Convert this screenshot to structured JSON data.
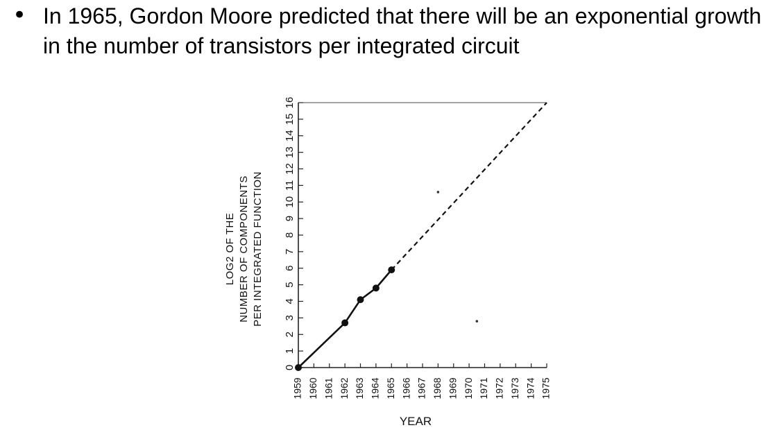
{
  "slide": {
    "bullet_symbol": "•",
    "text": "In 1965, Gordon Moore predicted that there will be an exponential growth in the number of transistors per integrated circuit"
  },
  "chart_data": {
    "type": "line",
    "xlabel": "YEAR",
    "ylabel_lines": [
      "LOG2 OF THE",
      "NUMBER OF COMPONENTS",
      "PER INTEGRATED FUNCTION"
    ],
    "x_ticks": [
      1959,
      1960,
      1961,
      1962,
      1963,
      1964,
      1965,
      1966,
      1967,
      1968,
      1969,
      1970,
      1971,
      1972,
      1973,
      1974,
      1975
    ],
    "y_ticks": [
      0,
      1,
      2,
      3,
      4,
      5,
      6,
      7,
      8,
      9,
      10,
      11,
      12,
      13,
      14,
      15,
      16
    ],
    "xlim": [
      1959,
      1975
    ],
    "ylim": [
      0,
      16
    ],
    "grid": false,
    "series": [
      {
        "style": "solid",
        "markers": true,
        "points": [
          [
            1959,
            0
          ],
          [
            1962,
            2.7
          ],
          [
            1963,
            4.1
          ],
          [
            1964,
            4.8
          ],
          [
            1965,
            5.9
          ]
        ]
      },
      {
        "style": "dashed",
        "markers": false,
        "points": [
          [
            1965,
            5.9
          ],
          [
            1975,
            16
          ]
        ]
      }
    ],
    "stray_dots": [
      [
        1968,
        10.6
      ],
      [
        1970.5,
        2.8
      ]
    ]
  }
}
